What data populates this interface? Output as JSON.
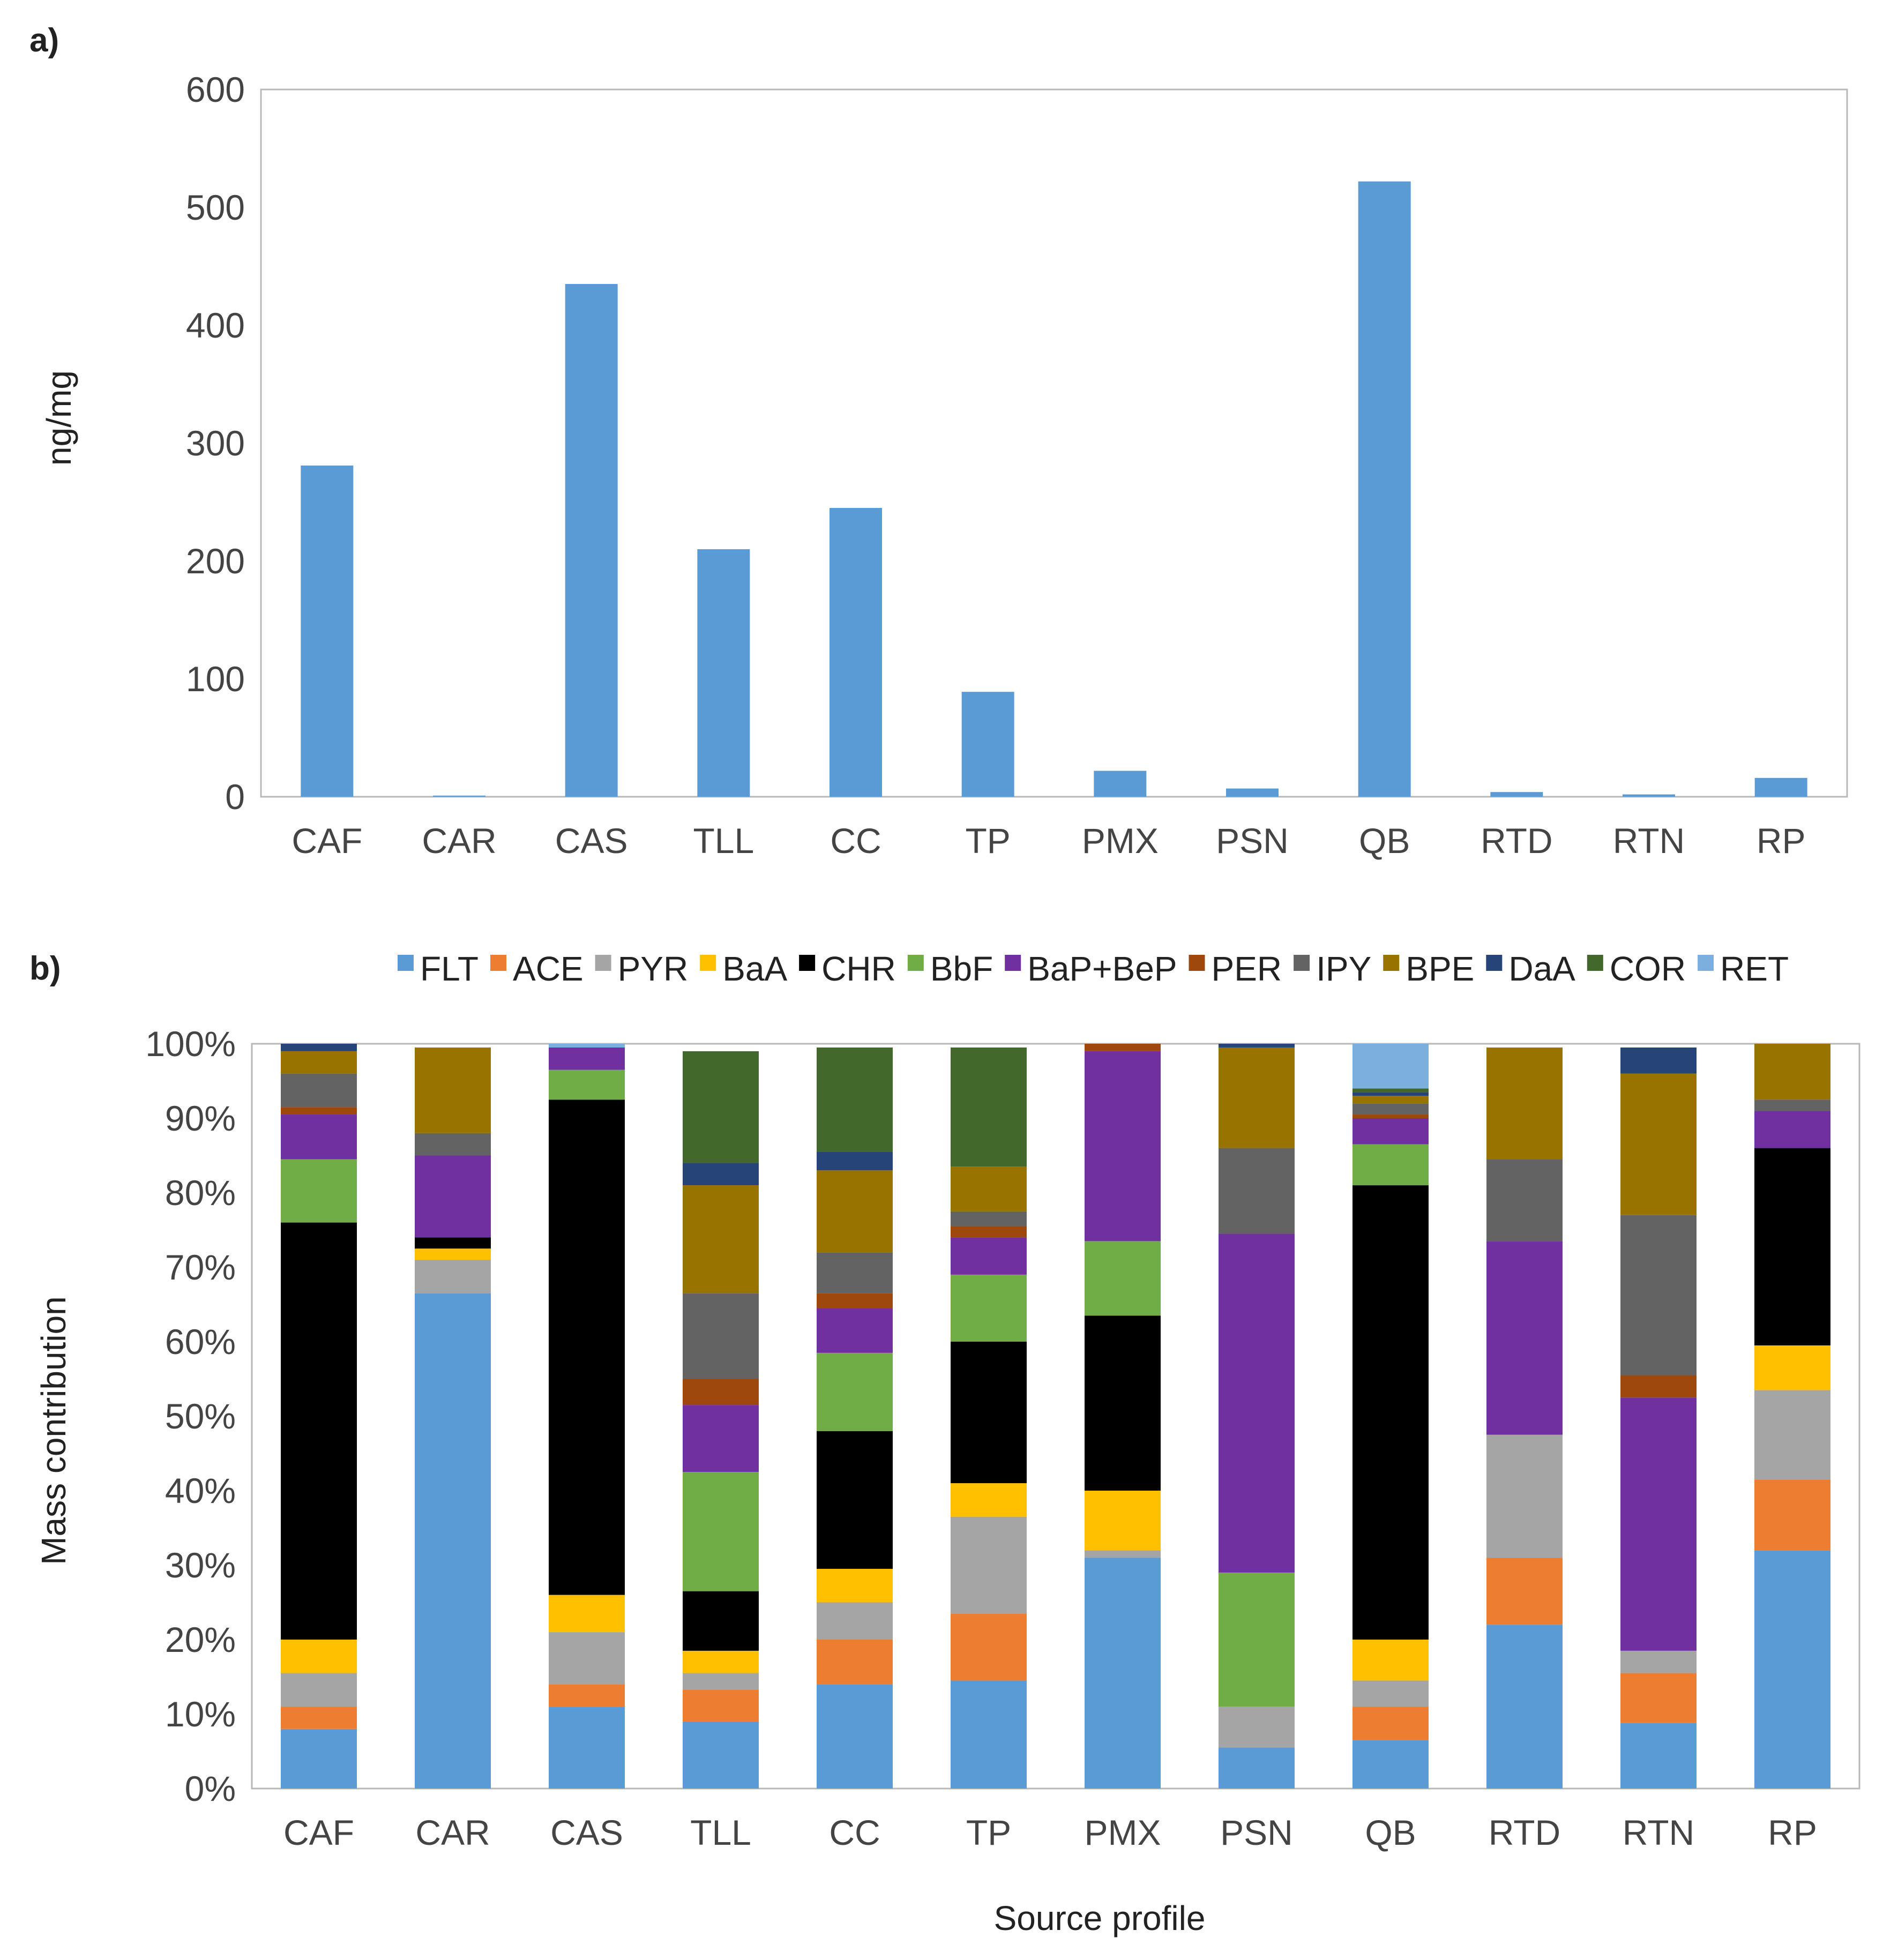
{
  "colors": {
    "FLT": "#5B9BD5",
    "ACE": "#ED7D31",
    "PYR": "#A5A5A5",
    "BaA": "#FFC000",
    "CHR": "#000000",
    "BbF": "#70AD47",
    "BaP+BeP": "#7030A0",
    "PER": "#9E480E",
    "IPY": "#636363",
    "BPE": "#997300",
    "DaA": "#264478",
    "COR": "#43682B",
    "RET": "#7CAFDD"
  },
  "chart_data": [
    {
      "id": "a",
      "panel_label": "a)",
      "type": "bar",
      "title": "",
      "xlabel": "",
      "ylabel": "ng/mg",
      "ylim": [
        0,
        600
      ],
      "yticks": [
        0,
        100,
        200,
        300,
        400,
        500,
        600
      ],
      "yticks_labels": [
        "0",
        "100",
        "200",
        "300",
        "400",
        "500",
        "600"
      ],
      "categories": [
        "CAF",
        "CAR",
        "CAS",
        "TLL",
        "CC",
        "TP",
        "PMX",
        "PSN",
        "QB",
        "RTD",
        "RTN",
        "RP"
      ],
      "values": [
        281,
        1,
        435,
        210,
        245,
        89,
        22,
        7,
        522,
        4,
        2,
        16
      ],
      "bar_color": "#5B9BD5",
      "grid": false
    },
    {
      "id": "b",
      "panel_label": "b)",
      "type": "bar",
      "stacked": true,
      "title": "",
      "xlabel": "Source profile",
      "ylabel": "Mass contribution",
      "ylim": [
        0,
        100
      ],
      "yticks": [
        0,
        10,
        20,
        30,
        40,
        50,
        60,
        70,
        80,
        90,
        100
      ],
      "yticks_labels": [
        "0%",
        "10%",
        "20%",
        "30%",
        "40%",
        "50%",
        "60%",
        "70%",
        "80%",
        "90%",
        "100%"
      ],
      "legend_position": "top",
      "grid": false,
      "categories": [
        "CAF",
        "CAR",
        "CAS",
        "TLL",
        "CC",
        "TP",
        "PMX",
        "PSN",
        "QB",
        "RTD",
        "RTN",
        "RP"
      ],
      "series": [
        {
          "name": "FLT",
          "values": [
            8.0,
            66.5,
            11.0,
            9.0,
            14.0,
            14.5,
            31.0,
            5.5,
            6.5,
            22.0,
            8.8,
            32.0
          ]
        },
        {
          "name": "ACE",
          "values": [
            3.0,
            0.0,
            3.0,
            4.3,
            6.0,
            9.0,
            0.0,
            0.0,
            4.5,
            9.0,
            6.7,
            9.5
          ]
        },
        {
          "name": "PYR",
          "values": [
            4.5,
            4.5,
            7.0,
            2.2,
            5.0,
            13.0,
            1.0,
            5.5,
            3.5,
            16.5,
            3.0,
            12.0
          ]
        },
        {
          "name": "BaA",
          "values": [
            4.5,
            1.5,
            5.0,
            3.0,
            4.5,
            4.5,
            8.0,
            0.0,
            5.5,
            0.0,
            0.0,
            6.0
          ]
        },
        {
          "name": "CHR",
          "values": [
            56.0,
            1.5,
            66.5,
            8.0,
            18.5,
            19.0,
            23.5,
            0.0,
            61.0,
            0.0,
            0.0,
            26.5
          ]
        },
        {
          "name": "BbF",
          "values": [
            8.5,
            0.0,
            4.0,
            16.0,
            10.5,
            9.0,
            10.0,
            18.0,
            5.5,
            0.0,
            0.0,
            0.0
          ]
        },
        {
          "name": "BaP+BeP",
          "values": [
            6.0,
            11.0,
            3.0,
            9.0,
            6.0,
            5.0,
            25.5,
            45.5,
            3.5,
            26.0,
            34.0,
            5.0
          ]
        },
        {
          "name": "PER",
          "values": [
            1.0,
            0.0,
            0.0,
            3.5,
            2.0,
            1.5,
            1.0,
            0.0,
            0.5,
            0.0,
            3.0,
            0.0
          ]
        },
        {
          "name": "IPY",
          "values": [
            4.5,
            3.0,
            0.0,
            11.5,
            5.5,
            2.0,
            0.0,
            11.5,
            1.5,
            11.0,
            21.5,
            1.5
          ]
        },
        {
          "name": "BPE",
          "values": [
            3.0,
            11.5,
            0.0,
            14.5,
            11.0,
            6.0,
            0.0,
            13.5,
            1.0,
            15.0,
            19.0,
            7.5
          ]
        },
        {
          "name": "DaA",
          "values": [
            1.0,
            0.0,
            0.0,
            3.0,
            2.5,
            0.0,
            0.0,
            0.5,
            0.5,
            0.0,
            3.5,
            0.0
          ]
        },
        {
          "name": "COR",
          "values": [
            0.0,
            0.0,
            0.0,
            15.0,
            14.0,
            16.0,
            0.0,
            0.0,
            0.5,
            0.0,
            0.0,
            0.0
          ]
        },
        {
          "name": "RET",
          "values": [
            0.0,
            0.0,
            0.5,
            0.0,
            0.0,
            0.0,
            0.0,
            0.0,
            6.0,
            0.0,
            0.0,
            0.0
          ]
        }
      ]
    }
  ]
}
